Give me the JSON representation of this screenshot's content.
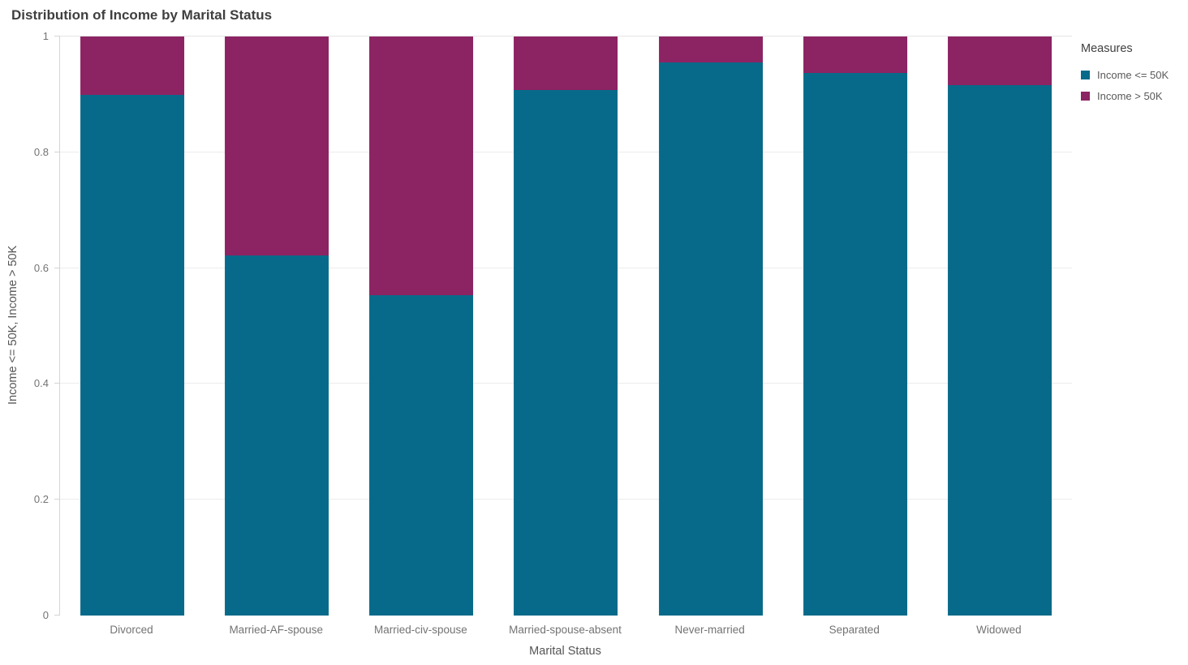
{
  "title": "Distribution of Income by Marital Status",
  "colors": {
    "income_le_50k": "#086a8a",
    "income_gt_50k": "#8c2363",
    "gridline": "#ececec",
    "axis_line": "#d4d4d4",
    "tick_text": "#737373",
    "title_text": "#3f3f3f"
  },
  "legend": {
    "title": "Measures",
    "items": [
      {
        "label": "Income <= 50K",
        "color": "#086a8a"
      },
      {
        "label": "Income > 50K",
        "color": "#8c2363"
      }
    ]
  },
  "chart_data": {
    "type": "bar",
    "stacked": true,
    "normalized": true,
    "title": "Distribution of Income by Marital Status",
    "categories": [
      "Divorced",
      "Married-AF-spouse",
      "Married-civ-spouse",
      "Married-spouse-absent",
      "Never-married",
      "Separated",
      "Widowed"
    ],
    "series": [
      {
        "name": "Income <= 50K",
        "color": "#086a8a",
        "values": [
          0.899,
          0.622,
          0.553,
          0.908,
          0.955,
          0.937,
          0.916
        ]
      },
      {
        "name": "Income > 50K",
        "color": "#8c2363",
        "values": [
          0.101,
          0.378,
          0.447,
          0.092,
          0.045,
          0.063,
          0.084
        ]
      }
    ],
    "xlabel": "Marital Status",
    "ylabel": "Income <= 50K, Income > 50K",
    "ylim": [
      0,
      1
    ],
    "yticks": [
      0,
      0.2,
      0.4,
      0.6,
      0.8,
      1
    ],
    "ytick_labels": [
      "0",
      "0.2",
      "0.4",
      "0.6",
      "0.8",
      "1"
    ],
    "grid": true,
    "legend_position": "right"
  }
}
